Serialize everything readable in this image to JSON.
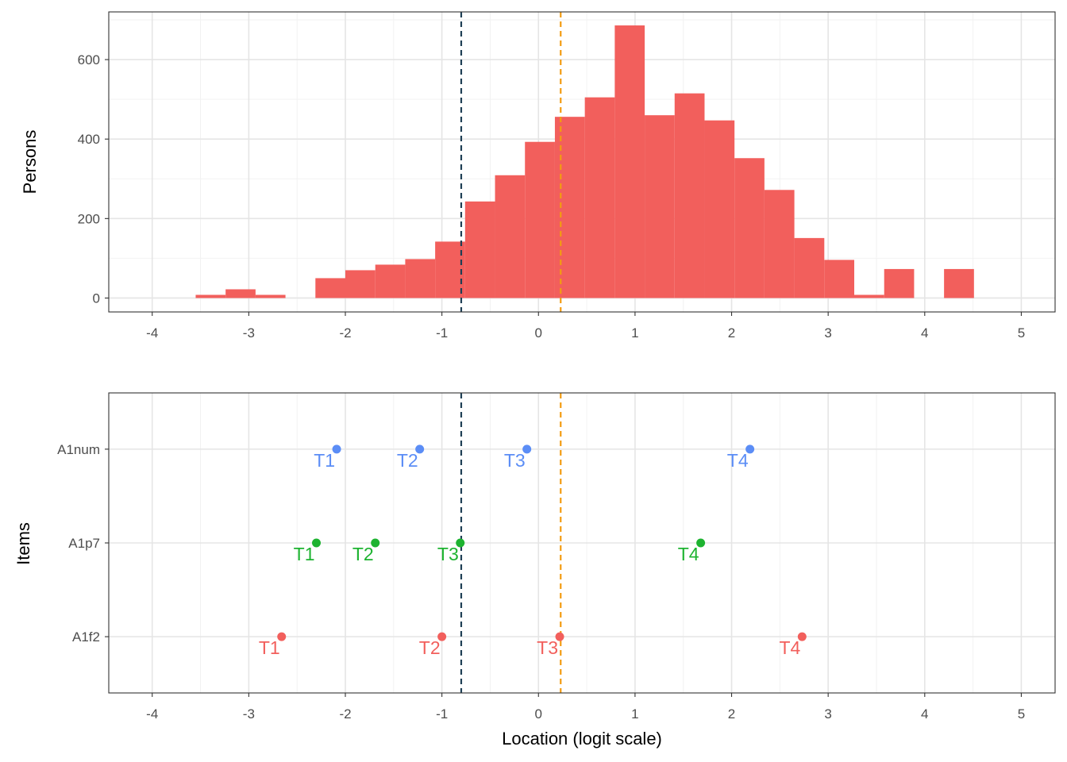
{
  "colors": {
    "bar": "#F25F5C",
    "A1num": "#5B8DF6",
    "A1p7": "#1DB330",
    "A1f2": "#F25F5C",
    "vline_person": "#1F3F55",
    "vline_item": "#F39C12",
    "grid_major": "#E5E5E5",
    "grid_minor": "#F2F2F2",
    "panel_border": "#333333",
    "tick_text": "#4D4D4D"
  },
  "chart_data": [
    {
      "type": "bar",
      "panel": "top",
      "ylabel": "Persons",
      "xlabel": "",
      "xlim": [
        -4.45,
        5.35
      ],
      "ylim": [
        -35,
        720
      ],
      "x_ticks": [
        -4,
        -3,
        -2,
        -1,
        0,
        1,
        2,
        3,
        4,
        5
      ],
      "x_tick_labels": [
        "-4",
        "-3",
        "-2",
        "-1",
        "0",
        "1",
        "2",
        "3",
        "4",
        "5"
      ],
      "y_ticks": [
        0,
        200,
        400,
        600
      ],
      "y_tick_labels": [
        "0",
        "200",
        "400",
        "600"
      ],
      "bin_width": 0.31,
      "bins": [
        {
          "x0": -3.55,
          "x1": -3.24,
          "count": 8
        },
        {
          "x0": -3.24,
          "x1": -2.93,
          "count": 22
        },
        {
          "x0": -2.93,
          "x1": -2.62,
          "count": 8
        },
        {
          "x0": -2.62,
          "x1": -2.31,
          "count": 0
        },
        {
          "x0": -2.31,
          "x1": -2.0,
          "count": 50
        },
        {
          "x0": -2.0,
          "x1": -1.69,
          "count": 70
        },
        {
          "x0": -1.69,
          "x1": -1.38,
          "count": 84
        },
        {
          "x0": -1.38,
          "x1": -1.07,
          "count": 98
        },
        {
          "x0": -1.07,
          "x1": -0.76,
          "count": 142
        },
        {
          "x0": -0.76,
          "x1": -0.45,
          "count": 243
        },
        {
          "x0": -0.45,
          "x1": -0.14,
          "count": 309
        },
        {
          "x0": -0.14,
          "x1": 0.17,
          "count": 393
        },
        {
          "x0": 0.17,
          "x1": 0.48,
          "count": 456
        },
        {
          "x0": 0.48,
          "x1": 0.79,
          "count": 505
        },
        {
          "x0": 0.79,
          "x1": 1.1,
          "count": 686
        },
        {
          "x0": 1.1,
          "x1": 1.41,
          "count": 460
        },
        {
          "x0": 1.41,
          "x1": 1.72,
          "count": 515
        },
        {
          "x0": 1.72,
          "x1": 2.03,
          "count": 447
        },
        {
          "x0": 2.03,
          "x1": 2.34,
          "count": 352
        },
        {
          "x0": 2.34,
          "x1": 2.65,
          "count": 272
        },
        {
          "x0": 2.65,
          "x1": 2.96,
          "count": 151
        },
        {
          "x0": 2.96,
          "x1": 3.27,
          "count": 96
        },
        {
          "x0": 3.27,
          "x1": 3.58,
          "count": 8
        },
        {
          "x0": 3.58,
          "x1": 3.89,
          "count": 73
        },
        {
          "x0": 3.89,
          "x1": 4.2,
          "count": 0
        },
        {
          "x0": 4.2,
          "x1": 4.51,
          "count": 73
        }
      ],
      "vlines": [
        {
          "x": -0.8,
          "style": "dashed",
          "color": "#1F3F55"
        },
        {
          "x": 0.23,
          "style": "dashed",
          "color": "#F39C12"
        }
      ],
      "grid": true
    },
    {
      "type": "scatter",
      "panel": "bottom",
      "ylabel": "Items",
      "xlabel": "Location (logit scale)",
      "xlim": [
        -4.45,
        5.35
      ],
      "x_ticks": [
        -4,
        -3,
        -2,
        -1,
        0,
        1,
        2,
        3,
        4,
        5
      ],
      "x_tick_labels": [
        "-4",
        "-3",
        "-2",
        "-1",
        "0",
        "1",
        "2",
        "3",
        "4",
        "5"
      ],
      "categories": [
        "A1f2",
        "A1p7",
        "A1num"
      ],
      "series": [
        {
          "item": "A1num",
          "color": "#5B8DF6",
          "points": [
            {
              "label": "T1",
              "x": -2.09
            },
            {
              "label": "T2",
              "x": -1.23
            },
            {
              "label": "T3",
              "x": -0.12
            },
            {
              "label": "T4",
              "x": 2.19
            }
          ]
        },
        {
          "item": "A1p7",
          "color": "#1DB330",
          "points": [
            {
              "label": "T1",
              "x": -2.3
            },
            {
              "label": "T2",
              "x": -1.69
            },
            {
              "label": "T3",
              "x": -0.81
            },
            {
              "label": "T4",
              "x": 1.68
            }
          ]
        },
        {
          "item": "A1f2",
          "color": "#F25F5C",
          "points": [
            {
              "label": "T1",
              "x": -2.66
            },
            {
              "label": "T2",
              "x": -1.0
            },
            {
              "label": "T3",
              "x": 0.22
            },
            {
              "label": "T4",
              "x": 2.73
            }
          ]
        }
      ],
      "vlines": [
        {
          "x": -0.8,
          "style": "dashed",
          "color": "#1F3F55"
        },
        {
          "x": 0.23,
          "style": "dashed",
          "color": "#F39C12"
        }
      ],
      "grid": true
    }
  ]
}
